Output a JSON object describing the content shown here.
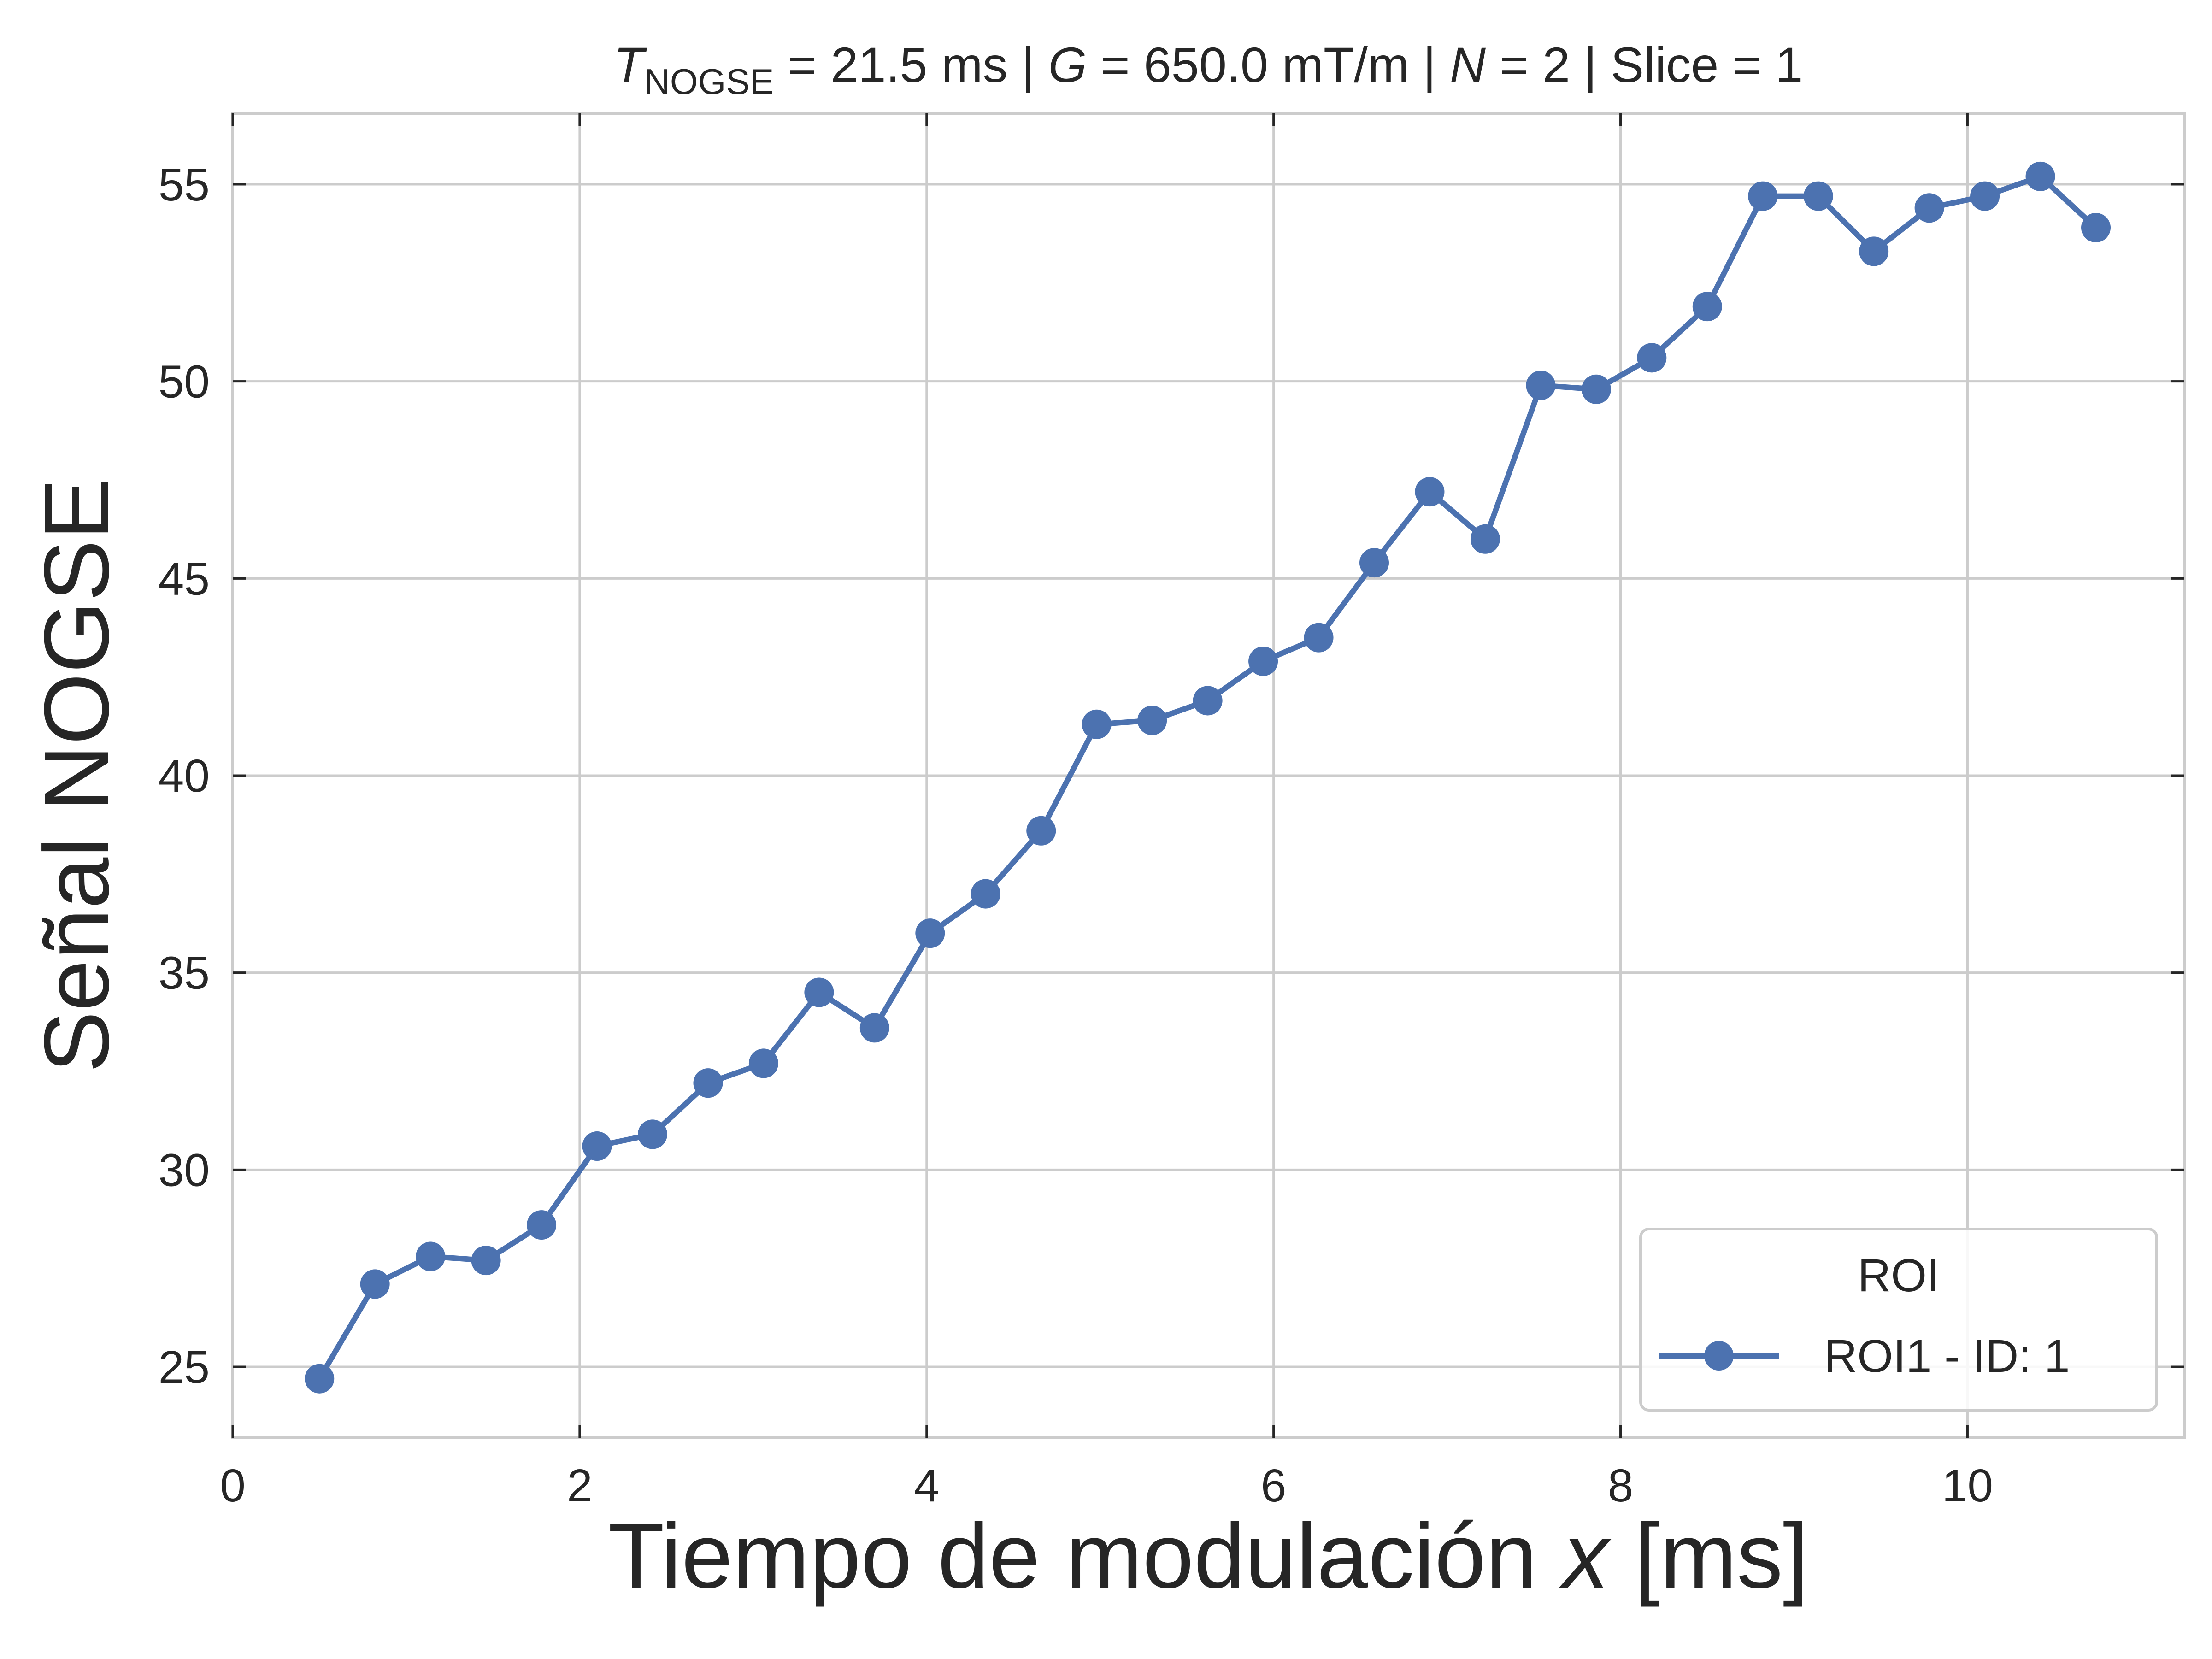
{
  "chart_data": {
    "type": "line",
    "title": {
      "t_symbol": "T",
      "t_subscript": "NOGSE",
      "t_rest": " = 21.5 ms | ",
      "g_symbol": "G",
      "g_rest": " = 650.0 mT/m | ",
      "n_symbol": "N",
      "n_rest": " = 2 | Slice = 1"
    },
    "xlabel": "Tiempo de modulación ",
    "xlabel_var": "x",
    "xlabel_unit": " [ms]",
    "ylabel": "Señal NOGSE",
    "xlim": [
      0,
      11.25
    ],
    "ylim": [
      23.2,
      56.8
    ],
    "xticks": [
      "0",
      "2",
      "4",
      "6",
      "8",
      "10"
    ],
    "xtick_values": [
      0,
      2,
      4,
      6,
      8,
      10
    ],
    "yticks": [
      "25",
      "30",
      "35",
      "40",
      "45",
      "50",
      "55"
    ],
    "ytick_values": [
      25,
      30,
      35,
      40,
      45,
      50,
      55
    ],
    "grid": true,
    "legend": {
      "title": "ROI",
      "placement": "lower-right"
    },
    "series": [
      {
        "name": "ROI1 - ID: 1",
        "color": "#4c72b0",
        "x": [
          0.5,
          0.82,
          1.14,
          1.46,
          1.78,
          2.1,
          2.42,
          2.74,
          3.06,
          3.38,
          3.7,
          4.02,
          4.34,
          4.66,
          4.98,
          5.3,
          5.62,
          5.94,
          6.26,
          6.58,
          6.9,
          7.22,
          7.54,
          7.86,
          8.18,
          8.5,
          8.82,
          9.14,
          9.46,
          9.78,
          10.1,
          10.42,
          10.74
        ],
        "y": [
          24.7,
          27.1,
          27.8,
          27.7,
          28.6,
          30.6,
          30.9,
          32.2,
          32.7,
          34.5,
          33.6,
          36.0,
          37.0,
          38.6,
          41.3,
          41.4,
          41.9,
          42.9,
          43.5,
          45.4,
          47.2,
          46.0,
          49.9,
          49.8,
          50.6,
          51.9,
          54.7,
          54.7,
          53.3,
          54.4,
          54.7,
          55.2,
          53.9
        ]
      }
    ]
  }
}
